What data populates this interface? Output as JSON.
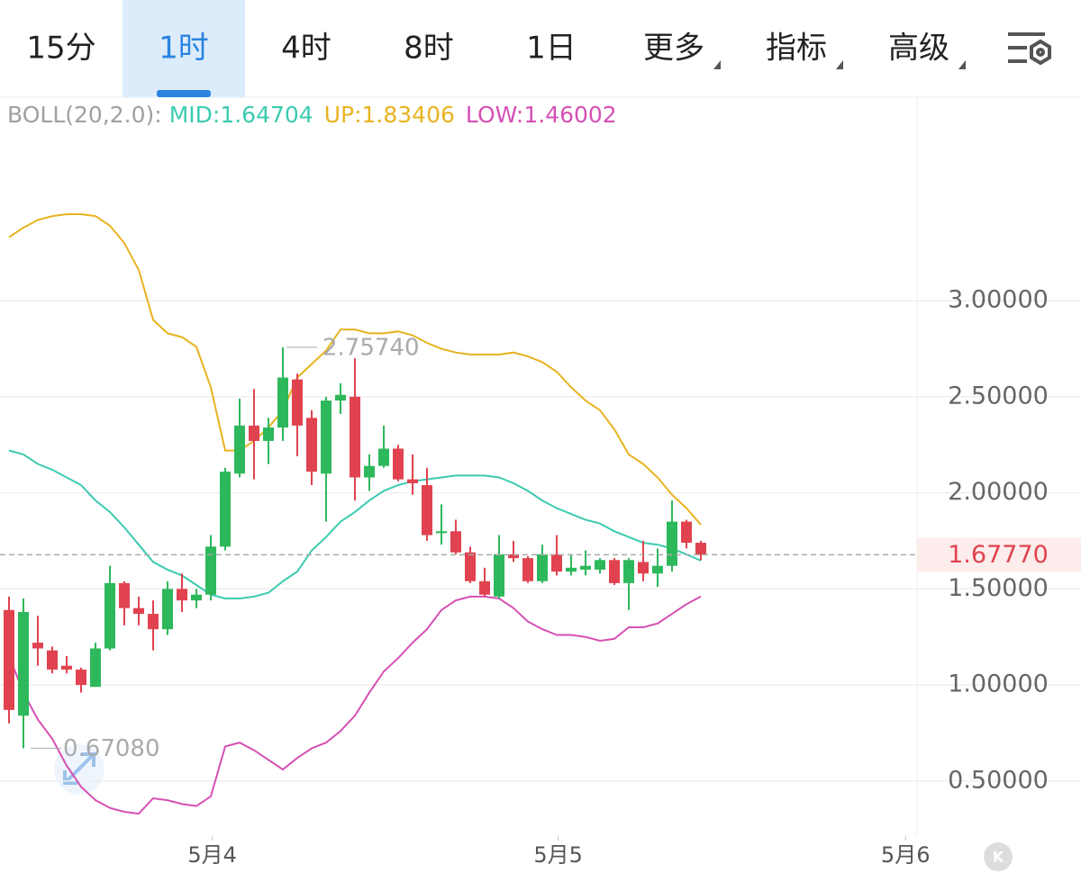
{
  "tabs": [
    {
      "label": "15分"
    },
    {
      "label": "1时"
    },
    {
      "label": "4时"
    },
    {
      "label": "8时"
    },
    {
      "label": "1日"
    },
    {
      "label": "更多",
      "dropdown": true
    },
    {
      "label": "指标",
      "dropdown": true
    },
    {
      "label": "高级",
      "dropdown": true
    }
  ],
  "active_tab": 1,
  "k_button": "K",
  "chart_data": {
    "type": "candlestick",
    "indicator": "BOLL(20,2.0):",
    "up_color": "#2eb85c",
    "down_color": "#e0434f",
    "open": [
      1.39,
      0.84,
      1.22,
      1.18,
      1.1,
      1.08,
      0.99,
      1.19,
      1.53,
      1.4,
      1.37,
      1.29,
      1.5,
      1.44,
      1.47,
      1.72,
      2.1,
      2.35,
      2.27,
      2.34,
      2.59,
      2.39,
      2.1,
      2.48,
      2.5,
      2.08,
      2.14,
      2.23,
      2.07,
      2.04,
      1.79,
      1.8,
      1.69,
      1.54,
      1.46,
      1.68,
      1.66,
      1.54,
      1.68,
      1.59,
      1.6,
      1.6,
      1.65,
      1.53,
      1.64,
      1.58,
      1.62,
      1.85,
      1.74
    ],
    "high": [
      1.46,
      1.45,
      1.36,
      1.2,
      1.15,
      1.09,
      1.22,
      1.62,
      1.54,
      1.46,
      1.44,
      1.54,
      1.58,
      1.5,
      1.78,
      2.13,
      2.49,
      2.54,
      2.39,
      2.7574,
      2.62,
      2.43,
      2.5,
      2.57,
      2.7,
      2.2,
      2.35,
      2.25,
      2.2,
      2.13,
      1.94,
      1.86,
      1.72,
      1.61,
      1.78,
      1.75,
      1.67,
      1.73,
      1.78,
      1.68,
      1.7,
      1.66,
      1.66,
      1.66,
      1.75,
      1.71,
      1.96,
      1.86,
      1.75
    ],
    "low": [
      0.8,
      0.6708,
      1.1,
      1.06,
      1.06,
      0.96,
      0.99,
      1.18,
      1.31,
      1.31,
      1.18,
      1.26,
      1.38,
      1.4,
      1.44,
      1.7,
      2.08,
      2.07,
      2.15,
      2.27,
      2.19,
      2.04,
      1.85,
      2.41,
      1.96,
      2.01,
      2.13,
      2.06,
      1.99,
      1.75,
      1.73,
      1.68,
      1.53,
      1.46,
      1.45,
      1.64,
      1.53,
      1.53,
      1.57,
      1.57,
      1.57,
      1.58,
      1.52,
      1.39,
      1.54,
      1.51,
      1.59,
      1.71,
      1.65
    ],
    "close": [
      0.87,
      1.38,
      1.19,
      1.08,
      1.08,
      1.0,
      1.19,
      1.53,
      1.4,
      1.37,
      1.29,
      1.5,
      1.44,
      1.47,
      1.72,
      2.11,
      2.35,
      2.27,
      2.34,
      2.6,
      2.35,
      2.11,
      2.48,
      2.51,
      2.08,
      2.14,
      2.23,
      2.07,
      2.05,
      1.78,
      1.8,
      1.69,
      1.54,
      1.47,
      1.68,
      1.66,
      1.54,
      1.68,
      1.59,
      1.61,
      1.62,
      1.65,
      1.53,
      1.65,
      1.58,
      1.62,
      1.85,
      1.74,
      1.6777
    ],
    "series": [
      {
        "name": "MID:",
        "color": "#3ccbb0",
        "values": [
          2.22,
          2.2,
          2.15,
          2.12,
          2.08,
          2.04,
          1.96,
          1.9,
          1.82,
          1.73,
          1.64,
          1.6,
          1.57,
          1.52,
          1.47,
          1.45,
          1.45,
          1.46,
          1.48,
          1.54,
          1.59,
          1.7,
          1.77,
          1.85,
          1.9,
          1.96,
          2.01,
          2.04,
          2.06,
          2.07,
          2.08,
          2.09,
          2.09,
          2.09,
          2.08,
          2.05,
          2.01,
          1.96,
          1.92,
          1.89,
          1.86,
          1.84,
          1.8,
          1.77,
          1.74,
          1.73,
          1.71,
          1.68,
          1.64704
        ]
      },
      {
        "name": "UP:",
        "color": "#e8b320",
        "values": [
          3.33,
          3.38,
          3.42,
          3.44,
          3.45,
          3.45,
          3.44,
          3.39,
          3.3,
          3.16,
          2.9,
          2.83,
          2.81,
          2.76,
          2.55,
          2.22,
          2.22,
          2.27,
          2.34,
          2.43,
          2.6,
          2.67,
          2.74,
          2.85,
          2.85,
          2.83,
          2.83,
          2.84,
          2.82,
          2.78,
          2.75,
          2.73,
          2.72,
          2.72,
          2.72,
          2.73,
          2.71,
          2.68,
          2.63,
          2.55,
          2.48,
          2.43,
          2.33,
          2.2,
          2.15,
          2.08,
          1.99,
          1.92,
          1.83406
        ]
      },
      {
        "name": "LOW:",
        "color": "#d64fb4",
        "values": [
          1.15,
          0.96,
          0.82,
          0.72,
          0.58,
          0.47,
          0.4,
          0.36,
          0.34,
          0.33,
          0.41,
          0.4,
          0.38,
          0.37,
          0.42,
          0.68,
          0.7,
          0.66,
          0.61,
          0.56,
          0.62,
          0.67,
          0.7,
          0.76,
          0.84,
          0.96,
          1.07,
          1.14,
          1.22,
          1.29,
          1.39,
          1.44,
          1.46,
          1.46,
          1.45,
          1.4,
          1.33,
          1.29,
          1.26,
          1.26,
          1.25,
          1.23,
          1.24,
          1.3,
          1.3,
          1.32,
          1.37,
          1.42,
          1.46002
        ]
      }
    ],
    "high_label": {
      "value": 2.7574,
      "label": "2.75740"
    },
    "low_label": {
      "value": 0.6708,
      "label": "0.67080"
    },
    "last_price": {
      "value": 1.6777,
      "label": "1.67770"
    },
    "xlim": [
      -0.625,
      63
    ],
    "xticks": [
      {
        "value": 14.1,
        "label": "5月4"
      },
      {
        "value": 38.1,
        "label": "5月5"
      },
      {
        "value": 62.2,
        "label": "5月6"
      }
    ],
    "ylim": [
      0.218,
      4.059
    ],
    "yticks": [
      {
        "value": 0.5,
        "label": "0.50000"
      },
      {
        "value": 1,
        "label": "1.00000"
      },
      {
        "value": 1.5,
        "label": "1.50000"
      },
      {
        "value": 2,
        "label": "2.00000"
      },
      {
        "value": 2.5,
        "label": "2.50000"
      },
      {
        "value": 3,
        "label": "3.00000"
      }
    ],
    "grid": true
  }
}
